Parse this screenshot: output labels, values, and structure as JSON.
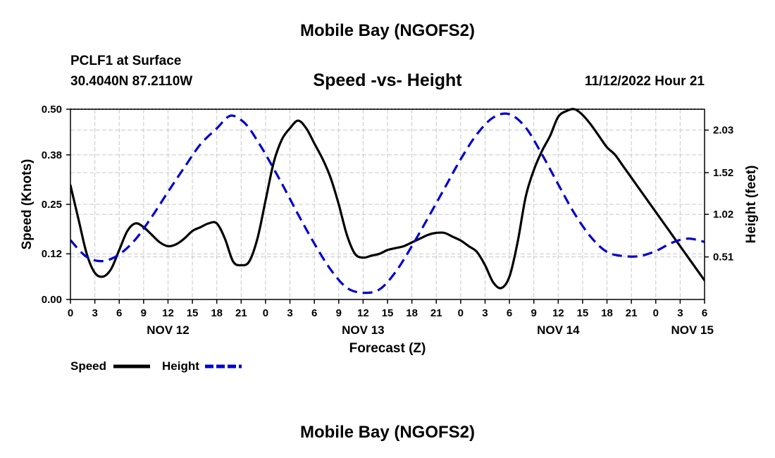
{
  "page": {
    "title_top": "Mobile Bay (NGOFS2)",
    "station": "PCLF1 at Surface",
    "latlon": "30.4040N  87.2110W",
    "subtitle": "Speed -vs- Height",
    "datetime": "11/12/2022 Hour 21",
    "title_bottom": "Mobile Bay (NGOFS2)"
  },
  "chart_data": {
    "type": "line",
    "title": "Speed -vs- Height",
    "xlabel": "Forecast (Z)",
    "ylabel": "Speed (Knots)",
    "y2label": "Height (feet)",
    "x_range": [
      0,
      78
    ],
    "ylim": [
      0,
      0.5
    ],
    "y2lim": [
      0.0,
      2.28
    ],
    "x_ticks": [
      0,
      3,
      6,
      9,
      12,
      15,
      18,
      21,
      24,
      27,
      30,
      33,
      36,
      39,
      42,
      45,
      48,
      51,
      54,
      57,
      60,
      63,
      66,
      69,
      72,
      75,
      78
    ],
    "x_tick_labels": [
      "0",
      "3",
      "6",
      "9",
      "12",
      "15",
      "18",
      "21",
      "0",
      "3",
      "6",
      "9",
      "12",
      "15",
      "18",
      "21",
      "0",
      "3",
      "6",
      "9",
      "12",
      "15",
      "18",
      "21",
      "0",
      "3",
      "6"
    ],
    "date_labels": [
      {
        "x": 12,
        "label": "NOV 12"
      },
      {
        "x": 36,
        "label": "NOV 13"
      },
      {
        "x": 60,
        "label": "NOV 14"
      },
      {
        "x": 76.5,
        "label": "NOV 15"
      }
    ],
    "y_ticks": [
      0.0,
      0.12,
      0.25,
      0.38,
      0.5
    ],
    "y_tick_labels": [
      "0.00",
      "0.12",
      "0.25",
      "0.38",
      "0.50"
    ],
    "y2_ticks": [
      0.51,
      1.02,
      1.52,
      2.03
    ],
    "y2_tick_labels": [
      "0.51",
      "1.02",
      "1.52",
      "2.03"
    ],
    "grid": true,
    "legend_position": "bottom-left",
    "series": [
      {
        "name": "Speed",
        "axis": "left",
        "color": "#000000",
        "dash": "solid",
        "x": [
          0,
          1,
          2,
          3,
          4,
          5,
          6,
          7,
          8,
          9,
          10,
          11,
          12,
          13,
          14,
          15,
          16,
          17,
          18,
          19,
          20,
          21,
          22,
          23,
          24,
          25,
          26,
          27,
          28,
          29,
          30,
          31,
          32,
          33,
          34,
          35,
          36,
          37,
          38,
          39,
          40,
          41,
          42,
          43,
          44,
          45,
          46,
          47,
          48,
          49,
          50,
          51,
          52,
          53,
          54,
          55,
          56,
          57,
          58,
          59,
          60,
          61,
          62,
          63,
          64,
          65,
          66,
          67,
          68,
          69,
          70,
          71,
          72,
          73,
          74,
          75,
          76,
          77,
          78
        ],
        "values": [
          0.3,
          0.21,
          0.12,
          0.07,
          0.06,
          0.08,
          0.13,
          0.18,
          0.2,
          0.19,
          0.17,
          0.15,
          0.14,
          0.145,
          0.16,
          0.18,
          0.19,
          0.2,
          0.2,
          0.16,
          0.1,
          0.09,
          0.1,
          0.16,
          0.26,
          0.36,
          0.42,
          0.45,
          0.47,
          0.45,
          0.41,
          0.37,
          0.32,
          0.25,
          0.17,
          0.12,
          0.11,
          0.115,
          0.12,
          0.13,
          0.135,
          0.14,
          0.15,
          0.16,
          0.17,
          0.175,
          0.175,
          0.165,
          0.155,
          0.14,
          0.125,
          0.09,
          0.045,
          0.03,
          0.06,
          0.15,
          0.27,
          0.34,
          0.39,
          0.43,
          0.48,
          0.495,
          0.5,
          0.485,
          0.46,
          0.43,
          0.4,
          0.38,
          0.35,
          0.32,
          0.29,
          0.26,
          0.23,
          0.2,
          0.17,
          0.14,
          0.11,
          0.08,
          0.05
        ]
      },
      {
        "name": "Height",
        "axis": "right",
        "color": "#0000cc",
        "dash": "dashed",
        "x": [
          0,
          2,
          4,
          6,
          8,
          10,
          12,
          14,
          16,
          18,
          19.6,
          21,
          22,
          23,
          24,
          26,
          28,
          30,
          32,
          34,
          36,
          38,
          40,
          42,
          44,
          46,
          48,
          50,
          52,
          54,
          56,
          58,
          60,
          62,
          64,
          66,
          68,
          70,
          72,
          74,
          76,
          78
        ],
        "values": [
          0.71,
          0.51,
          0.46,
          0.54,
          0.72,
          0.99,
          1.29,
          1.58,
          1.86,
          2.05,
          2.2,
          2.15,
          2.05,
          1.9,
          1.74,
          1.39,
          1.02,
          0.67,
          0.36,
          0.14,
          0.08,
          0.12,
          0.33,
          0.64,
          0.98,
          1.33,
          1.68,
          1.98,
          2.18,
          2.22,
          2.06,
          1.74,
          1.38,
          1.03,
          0.75,
          0.57,
          0.52,
          0.52,
          0.58,
          0.68,
          0.73,
          0.69
        ]
      }
    ]
  }
}
